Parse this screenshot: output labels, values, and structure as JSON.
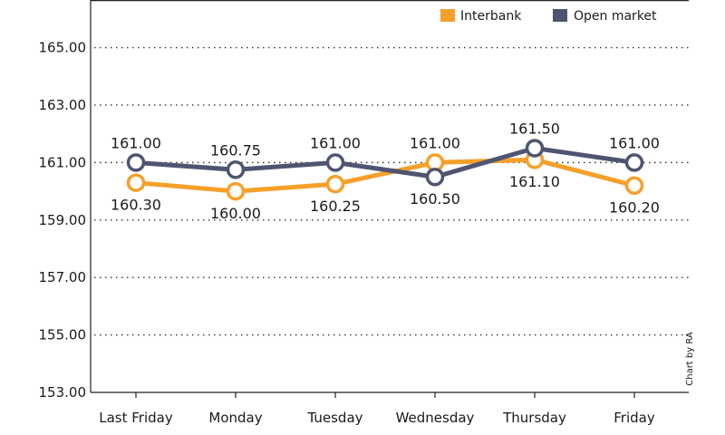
{
  "chart_data": {
    "type": "line",
    "categories": [
      "Last Friday",
      "Monday",
      "Tuesday",
      "Wednesday",
      "Thursday",
      "Friday"
    ],
    "series": [
      {
        "name": "Interbank",
        "color": "#f5a02a",
        "values": [
          160.3,
          160.0,
          160.25,
          161.0,
          161.1,
          160.2
        ],
        "labels": [
          "160.30",
          "160.00",
          "160.25",
          "161.00",
          "161.10",
          "160.20"
        ],
        "label_side": [
          "below",
          "below",
          "below",
          "above",
          "below",
          "below"
        ]
      },
      {
        "name": "Open market",
        "color": "#4f5570",
        "values": [
          161.0,
          160.75,
          161.0,
          160.5,
          161.5,
          161.0
        ],
        "labels": [
          "161.00",
          "160.75",
          "161.00",
          "160.50",
          "161.50",
          "161.00"
        ],
        "label_side": [
          "above",
          "above",
          "above",
          "below",
          "above",
          "above"
        ]
      }
    ],
    "yticks": [
      {
        "value": 153,
        "label": "153.00"
      },
      {
        "value": 155,
        "label": "155.00"
      },
      {
        "value": 157,
        "label": "157.00"
      },
      {
        "value": 159,
        "label": "159.00"
      },
      {
        "value": 161,
        "label": "161.00"
      },
      {
        "value": 163,
        "label": "163.00"
      },
      {
        "value": 165,
        "label": "165.00"
      }
    ],
    "ylim": [
      153,
      166.5
    ],
    "grid": "horizontal-dotted",
    "legend": "top-right",
    "credit": "Chart by RA"
  }
}
